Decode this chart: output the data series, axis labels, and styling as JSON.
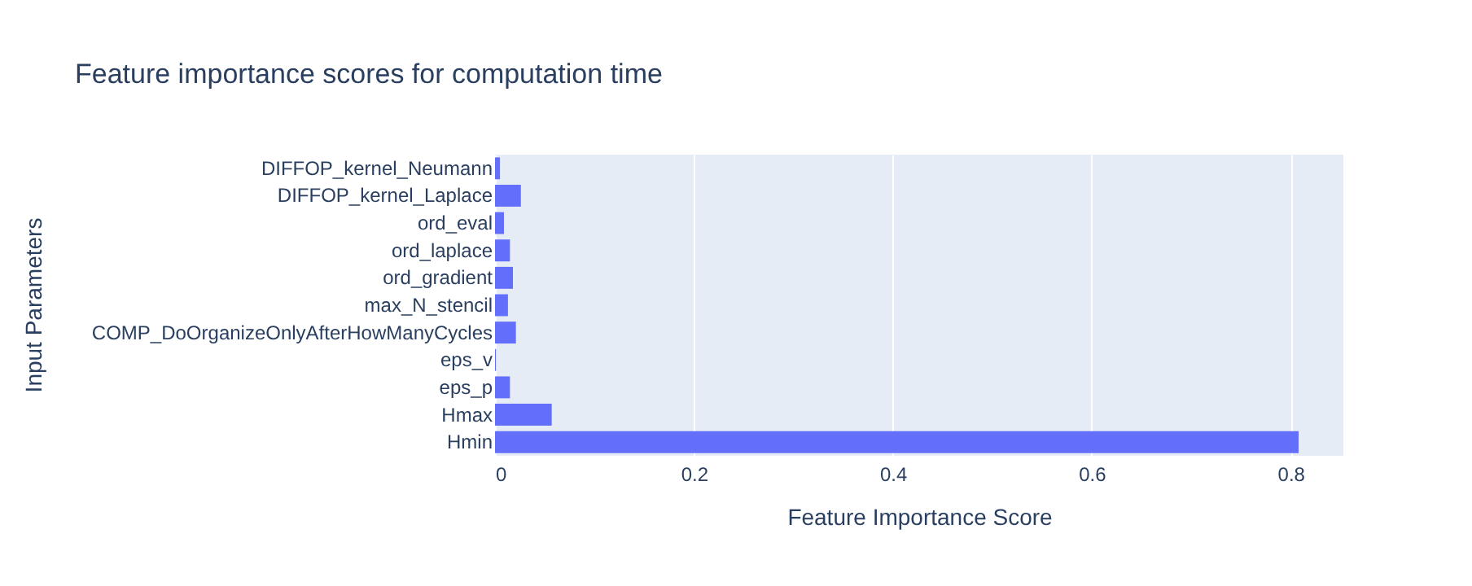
{
  "chart_data": {
    "type": "bar",
    "orientation": "horizontal",
    "title": "Feature importance scores for computation time",
    "xlabel": "Feature Importance Score",
    "ylabel": "Input Parameters",
    "categories": [
      "DIFFOP_kernel_Neumann",
      "DIFFOP_kernel_Laplace",
      "ord_eval",
      "ord_laplace",
      "ord_gradient",
      "max_N_stencil",
      "COMP_DoOrganizeOnlyAfterHowManyCycles",
      "eps_v",
      "eps_p",
      "Hmax",
      "Hmin"
    ],
    "values": [
      0.005,
      0.026,
      0.009,
      0.015,
      0.018,
      0.013,
      0.021,
      0.001,
      0.015,
      0.057,
      0.808
    ],
    "color": "#636efa",
    "xlim": [
      0,
      0.853
    ],
    "xticks": [
      0,
      0.2,
      0.4,
      0.6,
      0.8
    ],
    "grid": "x"
  }
}
